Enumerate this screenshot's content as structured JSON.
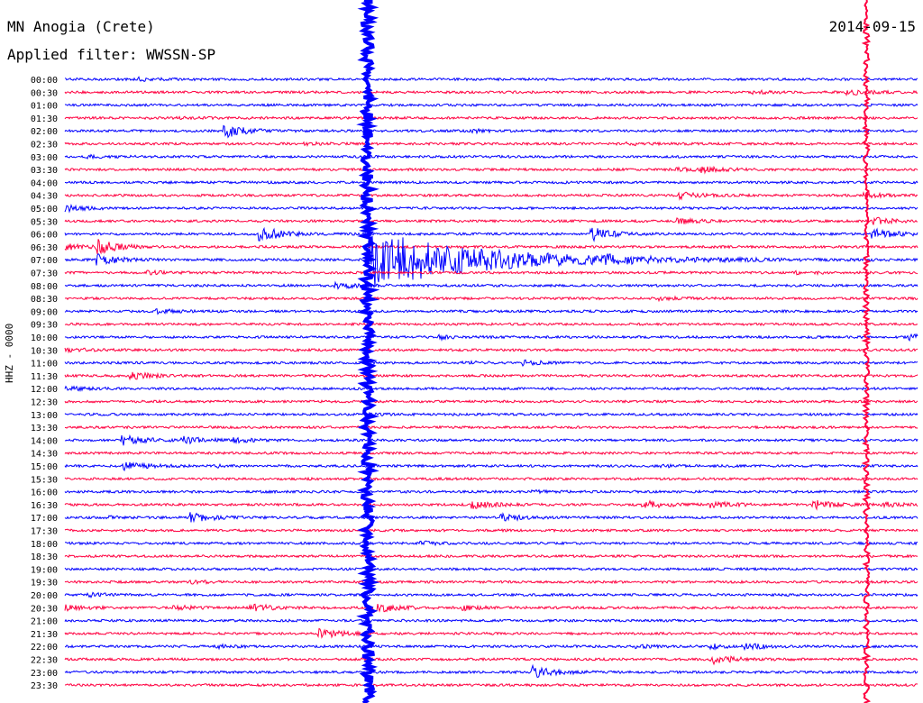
{
  "header": {
    "station": "MN Anogia (Crete)",
    "filter": "Applied filter: WWSSN-SP",
    "date": "2014-09-15"
  },
  "chart_data": {
    "type": "line",
    "title": "MN Anogia (Crete)",
    "ylabel": "HHZ - 0000",
    "xlabel": "",
    "colors": [
      "#0000ff",
      "#ff0040"
    ],
    "grid": false,
    "row_labels": [
      "00:00",
      "00:30",
      "01:00",
      "01:30",
      "02:00",
      "02:30",
      "03:00",
      "03:30",
      "04:00",
      "04:30",
      "05:00",
      "05:30",
      "06:00",
      "06:30",
      "07:00",
      "07:30",
      "08:00",
      "08:30",
      "09:00",
      "09:30",
      "10:00",
      "10:30",
      "11:00",
      "11:30",
      "12:00",
      "12:30",
      "13:00",
      "13:30",
      "14:00",
      "14:30",
      "15:00",
      "15:30",
      "16:00",
      "16:30",
      "17:00",
      "17:30",
      "18:00",
      "18:30",
      "19:00",
      "19:30",
      "20:00",
      "20:30",
      "21:00",
      "21:30",
      "22:00",
      "22:30",
      "23:00",
      "23:30"
    ],
    "events": [
      {
        "row": 0,
        "x": 0.09,
        "amp": 0.6
      },
      {
        "row": 1,
        "x": 0.81,
        "amp": 0.5
      },
      {
        "row": 1,
        "x": 0.92,
        "amp": 1.2
      },
      {
        "row": 3,
        "x": 0.13,
        "amp": 0.4
      },
      {
        "row": 4,
        "x": 0.19,
        "amp": 2.8
      },
      {
        "row": 4,
        "x": 0.48,
        "amp": 0.6
      },
      {
        "row": 5,
        "x": 0.28,
        "amp": 0.5
      },
      {
        "row": 5,
        "x": 0.66,
        "amp": 0.5
      },
      {
        "row": 6,
        "x": 0.03,
        "amp": 0.4
      },
      {
        "row": 7,
        "x": 0.72,
        "amp": 0.7
      },
      {
        "row": 7,
        "x": 0.75,
        "amp": 0.9
      },
      {
        "row": 9,
        "x": 0.72,
        "amp": 1.5
      },
      {
        "row": 9,
        "x": 0.94,
        "amp": 0.9
      },
      {
        "row": 10,
        "x": 0.0,
        "amp": 1.4
      },
      {
        "row": 11,
        "x": 0.72,
        "amp": 1.2
      },
      {
        "row": 11,
        "x": 0.95,
        "amp": 1.4
      },
      {
        "row": 12,
        "x": 0.23,
        "amp": 3.5
      },
      {
        "row": 12,
        "x": 0.62,
        "amp": 2.8
      },
      {
        "row": 12,
        "x": 0.95,
        "amp": 2.2
      },
      {
        "row": 13,
        "x": 0.0,
        "amp": 1.3
      },
      {
        "row": 13,
        "x": 0.04,
        "amp": 3.0
      },
      {
        "row": 14,
        "x": 0.04,
        "amp": 2.5
      },
      {
        "row": 14,
        "x": 0.63,
        "amp": 2.2
      },
      {
        "row": 15,
        "x": 0.1,
        "amp": 0.6
      },
      {
        "row": 15,
        "x": 0.86,
        "amp": 0.7
      },
      {
        "row": 16,
        "x": 0.32,
        "amp": 1.4
      },
      {
        "row": 17,
        "x": 0.7,
        "amp": 0.7
      },
      {
        "row": 18,
        "x": 0.11,
        "amp": 0.8
      },
      {
        "row": 20,
        "x": 0.44,
        "amp": 0.8
      },
      {
        "row": 20,
        "x": 0.99,
        "amp": 1.3
      },
      {
        "row": 21,
        "x": 0.0,
        "amp": 0.9
      },
      {
        "row": 22,
        "x": 0.47,
        "amp": 0.6
      },
      {
        "row": 22,
        "x": 0.54,
        "amp": 1.1
      },
      {
        "row": 23,
        "x": 0.08,
        "amp": 1.5
      },
      {
        "row": 24,
        "x": 0.0,
        "amp": 0.9
      },
      {
        "row": 26,
        "x": 0.35,
        "amp": 0.4
      },
      {
        "row": 28,
        "x": 0.07,
        "amp": 2.5
      },
      {
        "row": 28,
        "x": 0.14,
        "amp": 1.4
      },
      {
        "row": 28,
        "x": 0.2,
        "amp": 0.9
      },
      {
        "row": 30,
        "x": 0.07,
        "amp": 2.0
      },
      {
        "row": 30,
        "x": 0.18,
        "amp": 0.4
      },
      {
        "row": 30,
        "x": 0.7,
        "amp": 0.4
      },
      {
        "row": 32,
        "x": 0.55,
        "amp": 0.4
      },
      {
        "row": 33,
        "x": 0.48,
        "amp": 1.5
      },
      {
        "row": 33,
        "x": 0.68,
        "amp": 1.8
      },
      {
        "row": 33,
        "x": 0.76,
        "amp": 1.4
      },
      {
        "row": 33,
        "x": 0.88,
        "amp": 2.0
      },
      {
        "row": 33,
        "x": 0.96,
        "amp": 1.2
      },
      {
        "row": 34,
        "x": 0.05,
        "amp": 0.5
      },
      {
        "row": 34,
        "x": 0.15,
        "amp": 2.2
      },
      {
        "row": 34,
        "x": 0.51,
        "amp": 1.8
      },
      {
        "row": 36,
        "x": 0.42,
        "amp": 0.6
      },
      {
        "row": 39,
        "x": 0.15,
        "amp": 0.5
      },
      {
        "row": 40,
        "x": 0.03,
        "amp": 0.7
      },
      {
        "row": 41,
        "x": 0.0,
        "amp": 1.1
      },
      {
        "row": 41,
        "x": 0.13,
        "amp": 0.9
      },
      {
        "row": 41,
        "x": 0.22,
        "amp": 1.8
      },
      {
        "row": 41,
        "x": 0.36,
        "amp": 2.8
      },
      {
        "row": 41,
        "x": 0.47,
        "amp": 0.8
      },
      {
        "row": 43,
        "x": 0.3,
        "amp": 2.2
      },
      {
        "row": 44,
        "x": 0.18,
        "amp": 0.6
      },
      {
        "row": 44,
        "x": 0.67,
        "amp": 0.6
      },
      {
        "row": 44,
        "x": 0.76,
        "amp": 0.8
      },
      {
        "row": 44,
        "x": 0.8,
        "amp": 1.1
      },
      {
        "row": 45,
        "x": 0.76,
        "amp": 2.2
      },
      {
        "row": 46,
        "x": 0.55,
        "amp": 2.8
      }
    ],
    "big_quake": {
      "row": 14,
      "x": 0.36,
      "amp": 14
    },
    "spikes": [
      {
        "x": 0.355,
        "from_row": 0,
        "to_row": 47,
        "color": "#0000ff"
      },
      {
        "x": 0.94,
        "from_row": 0,
        "to_row": 47,
        "color": "#ff0040"
      }
    ]
  }
}
